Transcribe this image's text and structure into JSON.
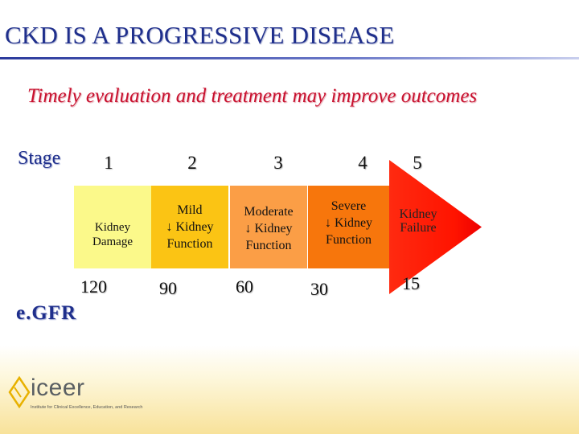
{
  "title": "CKD IS A PROGRESSIVE DISEASE",
  "subtitle": "Timely evaluation and treatment may improve outcomes",
  "stage_label": "Stage",
  "stages": [
    {
      "number": "1",
      "description": "Kidney\nDamage",
      "gfr": "120",
      "color": "#fbf98a"
    },
    {
      "number": "2",
      "description": "Mild\n↓ Kidney\nFunction",
      "gfr": "90",
      "color": "#fbc414"
    },
    {
      "number": "3",
      "description": "Moderate\n↓ Kidney\nFunction",
      "gfr": "60",
      "color": "#fb9e46"
    },
    {
      "number": "4",
      "description": "Severe\n↓ Kidney\nFunction",
      "gfr": "30",
      "color": "#f7760c"
    },
    {
      "number": "5",
      "description": "Kidney\nFailure",
      "gfr": "15",
      "color": "#ff1400"
    }
  ],
  "gfr_label": "e.GFR",
  "logo": {
    "name": "iceer",
    "tagline": "Institute for Clinical Excellence, Education, and Research"
  },
  "colors": {
    "title": "#1f2f8c",
    "subtitle": "#c8102e"
  }
}
